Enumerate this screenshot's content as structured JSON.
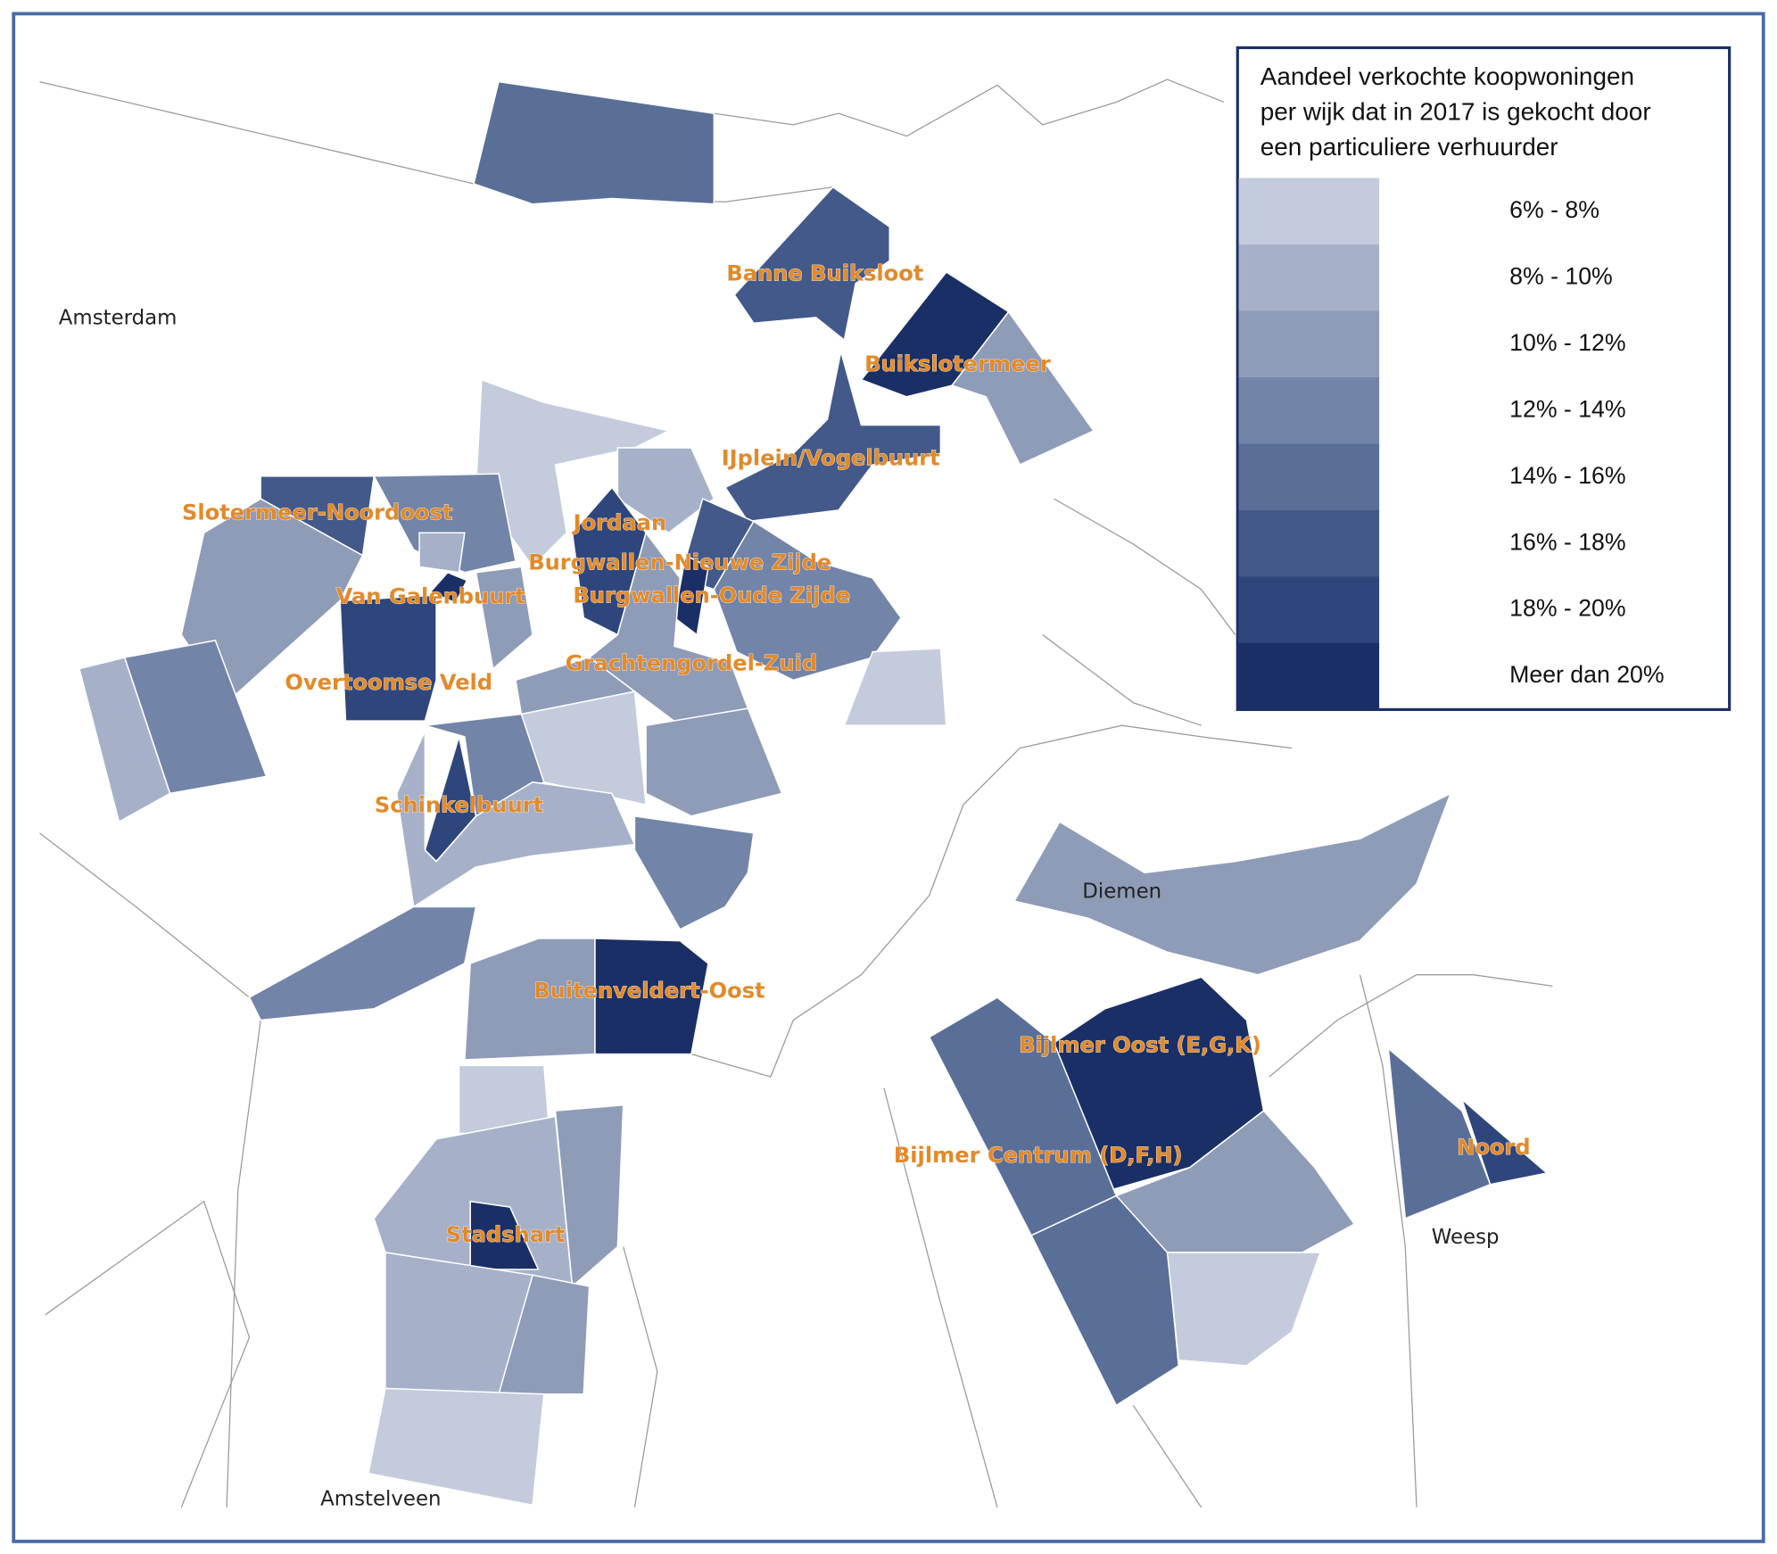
{
  "legend": {
    "title_lines": [
      "Aandeel verkochte koopwoningen",
      "per wijk dat in 2017 is gekocht door",
      "een particuliere verhuurder"
    ],
    "items": [
      {
        "label": "6% - 8%",
        "color": "#c3cbdc"
      },
      {
        "label": "8% - 10%",
        "color": "#a6b1c9"
      },
      {
        "label": "10% - 12%",
        "color": "#8e9cb8"
      },
      {
        "label": "12% - 14%",
        "color": "#7284a8"
      },
      {
        "label": "14% - 16%",
        "color": "#5a6f98"
      },
      {
        "label": "16% - 18%",
        "color": "#43598a"
      },
      {
        "label": "18% - 20%",
        "color": "#2f467c"
      },
      {
        "label": "Meer dan 20%",
        "color": "#1a2f66"
      }
    ]
  },
  "places": [
    "Amsterdam",
    "Diemen",
    "Amstelveen",
    "Weesp"
  ],
  "districts": [
    "Banne Buiksloot",
    "Buikslotermeer",
    "IJplein/Vogelbuurt",
    "Slotermeer-Noordoost",
    "Jordaan",
    "Burgwallen-Nieuwe Zijde",
    "Van Galenbuurt",
    "Burgwallen-Oude Zijde",
    "Overtoomse Veld",
    "Grachtengordel-Zuid",
    "Schinkelbuurt",
    "Buitenveldert-Oost",
    "Bijlmer Oost (E,G,K)",
    "Bijlmer Centrum (D,F,H)",
    "Noord",
    "Stadshart"
  ]
}
